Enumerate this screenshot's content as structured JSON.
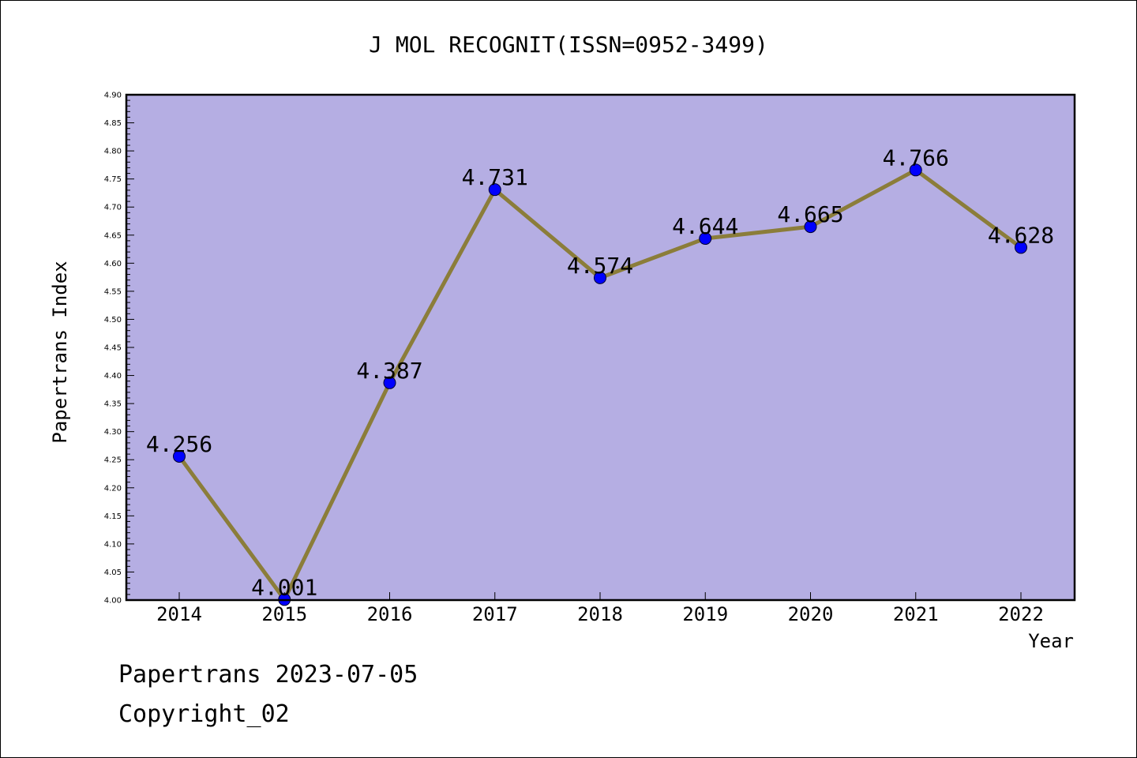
{
  "chart_data": {
    "type": "line",
    "title": "J MOL RECOGNIT(ISSN=0952-3499)",
    "xlabel": "Year",
    "ylabel": "Papertrans Index",
    "categories": [
      "2014",
      "2015",
      "2016",
      "2017",
      "2018",
      "2019",
      "2020",
      "2021",
      "2022"
    ],
    "values": [
      4.256,
      4.001,
      4.387,
      4.731,
      4.574,
      4.644,
      4.665,
      4.766,
      4.628
    ],
    "data_labels": [
      "4.256",
      "4.001",
      "4.387",
      "4.731",
      "4.574",
      "4.644",
      "4.665",
      "4.766",
      "4.628"
    ],
    "ylim": [
      4.0,
      4.9
    ],
    "yticks": [
      "4.00",
      "4.05",
      "4.10",
      "4.15",
      "4.20",
      "4.25",
      "4.30",
      "4.35",
      "4.40",
      "4.45",
      "4.50",
      "4.55",
      "4.60",
      "4.65",
      "4.70",
      "4.75",
      "4.80",
      "4.85",
      "4.90"
    ],
    "grid": false,
    "colors": {
      "plot_background": "#b5aee3",
      "line": "#8b7d3a",
      "marker": "#0000ff"
    }
  },
  "footer": {
    "line1": "Papertrans 2023-07-05",
    "line2": "Copyright_02"
  }
}
